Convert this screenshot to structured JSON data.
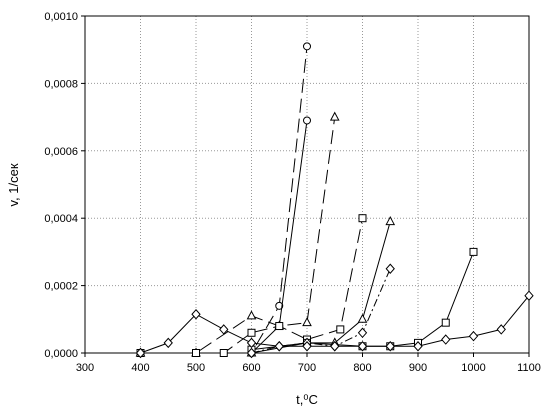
{
  "chart_data": {
    "type": "line",
    "x_label": "t,⁰C",
    "y_label": "v, 1/сек",
    "xlim": [
      300,
      1100
    ],
    "xticks": [
      300,
      400,
      500,
      600,
      700,
      800,
      900,
      1000,
      1100
    ],
    "ylim": [
      0,
      0.001
    ],
    "yticks": [
      {
        "value": 0,
        "label": "0,0000"
      },
      {
        "value": 0.0002,
        "label": "0,0002"
      },
      {
        "value": 0.0004,
        "label": "0,0004"
      },
      {
        "value": 0.0006,
        "label": "0,0006"
      },
      {
        "value": 0.0008,
        "label": "0,0008"
      },
      {
        "value": 0.001,
        "label": "0,0010"
      }
    ],
    "grid": true,
    "series": [
      {
        "color": "#000000",
        "marker": "circle",
        "dash": "long",
        "x": [
          400,
          500,
          600,
          650,
          700
        ],
        "values": [
          0,
          0,
          0,
          0.00014,
          0.00091
        ]
      },
      {
        "color": "#000000",
        "marker": "circle",
        "dash": "solid",
        "x": [
          400,
          500,
          600,
          650,
          700
        ],
        "values": [
          0,
          0,
          0,
          8e-05,
          0.00069
        ]
      },
      {
        "color": "#000000",
        "marker": "triangle",
        "dash": "long",
        "x": [
          400,
          500,
          600,
          650,
          700,
          750
        ],
        "values": [
          0,
          0,
          0.00011,
          8e-05,
          9e-05,
          0.0007
        ]
      },
      {
        "color": "#000000",
        "marker": "triangle",
        "dash": "solid",
        "x": [
          600,
          700,
          750,
          800,
          850
        ],
        "values": [
          0,
          3e-05,
          3e-05,
          0.0001,
          0.00039
        ]
      },
      {
        "color": "#000000",
        "marker": "square",
        "dash": "long",
        "x": [
          400,
          500,
          550,
          600,
          650,
          700,
          760,
          800
        ],
        "values": [
          0,
          0,
          0,
          6e-05,
          8e-05,
          4e-05,
          7e-05,
          0.0004
        ]
      },
      {
        "color": "#000000",
        "marker": "square",
        "dash": "solid",
        "x": [
          600,
          700,
          800,
          850,
          900,
          950,
          1000
        ],
        "values": [
          1e-05,
          3e-05,
          2e-05,
          2e-05,
          3e-05,
          9e-05,
          0.0003
        ]
      },
      {
        "color": "#000000",
        "marker": "diamond",
        "dash": "dashdot",
        "x": [
          600,
          650,
          700,
          750,
          800,
          850
        ],
        "values": [
          0,
          2e-05,
          3e-05,
          2e-05,
          6e-05,
          0.00025
        ]
      },
      {
        "color": "#000000",
        "marker": "diamond",
        "dash": "solid",
        "x": [
          400,
          450,
          500,
          550,
          600,
          650,
          700,
          750,
          800,
          850,
          900,
          950,
          1000,
          1050,
          1100
        ],
        "values": [
          0,
          3e-05,
          0.000115,
          7e-05,
          3e-05,
          2e-05,
          2e-05,
          2e-05,
          2e-05,
          2e-05,
          2e-05,
          4e-05,
          5e-05,
          7e-05,
          0.00017
        ]
      }
    ]
  }
}
